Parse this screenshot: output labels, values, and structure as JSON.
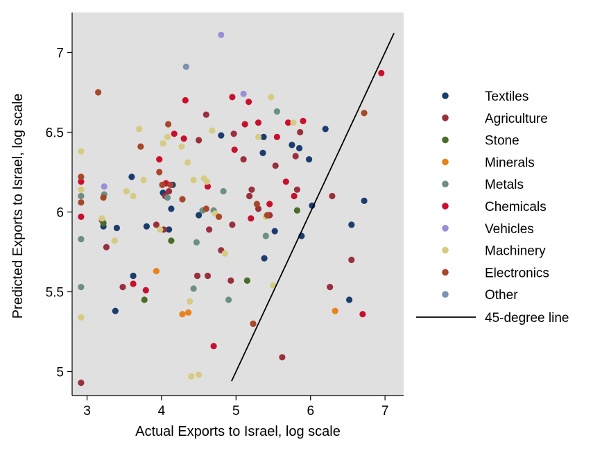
{
  "chart_data": {
    "type": "scatter",
    "title": "",
    "xlabel": "Actual Exports to Israel, log scale",
    "ylabel": "Predicted Exports to Israel, log scale",
    "xlim": [
      2.8,
      7.25
    ],
    "ylim": [
      4.85,
      7.25
    ],
    "xticks": [
      "3",
      "4",
      "5",
      "6",
      "7"
    ],
    "yticks": [
      "5",
      "5.5",
      "6",
      "6.5",
      "7"
    ],
    "grid": false,
    "plot_background": "#e0e0e0",
    "legend_position": "right",
    "series": [
      {
        "name": "Textiles",
        "color": "#1b3d6e",
        "points": [
          [
            3.22,
            5.91
          ],
          [
            3.38,
            5.38
          ],
          [
            3.4,
            5.9
          ],
          [
            3.6,
            6.22
          ],
          [
            3.62,
            5.6
          ],
          [
            3.8,
            5.91
          ],
          [
            4.02,
            6.12
          ],
          [
            4.1,
            5.89
          ],
          [
            4.13,
            6.02
          ],
          [
            4.15,
            6.17
          ],
          [
            4.5,
            5.98
          ],
          [
            4.8,
            6.48
          ],
          [
            5.37,
            6.47
          ],
          [
            5.36,
            6.37
          ],
          [
            5.38,
            5.71
          ],
          [
            5.52,
            5.88
          ],
          [
            5.75,
            6.42
          ],
          [
            5.85,
            6.4
          ],
          [
            5.88,
            5.85
          ],
          [
            5.98,
            6.33
          ],
          [
            6.02,
            6.04
          ],
          [
            6.2,
            6.52
          ],
          [
            6.52,
            5.45
          ],
          [
            6.55,
            5.92
          ],
          [
            6.72,
            6.07
          ]
        ]
      },
      {
        "name": "Agriculture",
        "color": "#9a2f3d",
        "points": [
          [
            2.92,
            4.93
          ],
          [
            3.2,
            5.95
          ],
          [
            3.26,
            5.78
          ],
          [
            3.48,
            5.53
          ],
          [
            3.93,
            5.92
          ],
          [
            4.03,
            5.89
          ],
          [
            4.05,
            6.1
          ],
          [
            4.1,
            6.13
          ],
          [
            4.48,
            5.6
          ],
          [
            4.5,
            6.45
          ],
          [
            4.6,
            6.61
          ],
          [
            4.62,
            5.6
          ],
          [
            4.64,
            5.89
          ],
          [
            4.8,
            5.76
          ],
          [
            4.93,
            5.57
          ],
          [
            4.95,
            5.92
          ],
          [
            4.97,
            6.49
          ],
          [
            5.1,
            6.33
          ],
          [
            5.18,
            6.1
          ],
          [
            5.21,
            6.14
          ],
          [
            5.3,
            6.02
          ],
          [
            5.45,
            5.98
          ],
          [
            5.53,
            6.29
          ],
          [
            5.62,
            5.09
          ],
          [
            5.8,
            6.35
          ],
          [
            5.82,
            6.14
          ],
          [
            5.86,
            6.5
          ],
          [
            6.26,
            5.53
          ],
          [
            6.29,
            6.1
          ],
          [
            6.55,
            5.7
          ]
        ]
      },
      {
        "name": "Stone",
        "color": "#4a6b2a",
        "points": [
          [
            3.22,
            5.93
          ],
          [
            3.77,
            5.45
          ],
          [
            4.13,
            5.82
          ],
          [
            5.15,
            5.57
          ],
          [
            5.82,
            6.01
          ]
        ]
      },
      {
        "name": "Minerals",
        "color": "#e8821b",
        "points": [
          [
            3.93,
            5.63
          ],
          [
            4.28,
            5.36
          ],
          [
            4.36,
            5.37
          ],
          [
            6.33,
            5.38
          ]
        ]
      },
      {
        "name": "Metals",
        "color": "#6b8f83",
        "points": [
          [
            2.92,
            6.1
          ],
          [
            2.92,
            5.83
          ],
          [
            2.92,
            5.53
          ],
          [
            3.23,
            6.11
          ],
          [
            4.08,
            6.09
          ],
          [
            4.43,
            5.52
          ],
          [
            4.47,
            5.81
          ],
          [
            4.55,
            6.01
          ],
          [
            4.7,
            6.01
          ],
          [
            4.83,
            6.13
          ],
          [
            4.9,
            5.45
          ],
          [
            5.4,
            5.85
          ],
          [
            5.55,
            6.63
          ]
        ]
      },
      {
        "name": "Chemicals",
        "color": "#c8102e",
        "points": [
          [
            2.92,
            6.19
          ],
          [
            2.92,
            5.97
          ],
          [
            3.62,
            5.55
          ],
          [
            3.79,
            5.51
          ],
          [
            3.97,
            6.33
          ],
          [
            4.06,
            6.18
          ],
          [
            4.17,
            6.49
          ],
          [
            4.3,
            6.46
          ],
          [
            4.32,
            6.7
          ],
          [
            4.62,
            6.16
          ],
          [
            4.7,
            5.16
          ],
          [
            4.95,
            6.72
          ],
          [
            4.98,
            6.39
          ],
          [
            5.12,
            6.55
          ],
          [
            5.17,
            6.69
          ],
          [
            5.2,
            5.96
          ],
          [
            5.3,
            6.56
          ],
          [
            5.45,
            6.05
          ],
          [
            5.55,
            6.47
          ],
          [
            5.67,
            6.19
          ],
          [
            5.7,
            6.56
          ],
          [
            5.78,
            6.1
          ],
          [
            5.9,
            6.57
          ],
          [
            6.7,
            5.36
          ],
          [
            6.95,
            6.87
          ]
        ]
      },
      {
        "name": "Vehicles",
        "color": "#9b8fd8",
        "points": [
          [
            3.23,
            6.16
          ],
          [
            4.8,
            7.11
          ],
          [
            5.1,
            6.74
          ]
        ]
      },
      {
        "name": "Machinery",
        "color": "#d6cb82",
        "points": [
          [
            2.92,
            6.38
          ],
          [
            2.92,
            6.14
          ],
          [
            2.92,
            5.34
          ],
          [
            3.2,
            5.96
          ],
          [
            3.37,
            5.82
          ],
          [
            3.53,
            6.13
          ],
          [
            3.62,
            6.1
          ],
          [
            3.7,
            6.52
          ],
          [
            3.72,
            6.41
          ],
          [
            3.76,
            6.2
          ],
          [
            3.98,
            5.89
          ],
          [
            4.02,
            6.43
          ],
          [
            4.08,
            6.47
          ],
          [
            4.27,
            6.41
          ],
          [
            4.35,
            6.31
          ],
          [
            4.38,
            5.44
          ],
          [
            4.4,
            4.97
          ],
          [
            4.43,
            6.2
          ],
          [
            4.5,
            4.98
          ],
          [
            4.57,
            6.21
          ],
          [
            4.61,
            6.19
          ],
          [
            4.68,
            6.51
          ],
          [
            4.72,
            5.99
          ],
          [
            4.85,
            5.74
          ],
          [
            5.3,
            6.47
          ],
          [
            5.4,
            5.97
          ],
          [
            5.47,
            6.72
          ],
          [
            5.5,
            5.54
          ],
          [
            5.77,
            6.56
          ]
        ]
      },
      {
        "name": "Electronics",
        "color": "#a8472a",
        "points": [
          [
            2.92,
            6.22
          ],
          [
            2.92,
            6.06
          ],
          [
            3.15,
            6.75
          ],
          [
            3.22,
            6.09
          ],
          [
            3.72,
            6.41
          ],
          [
            3.97,
            6.25
          ],
          [
            4.01,
            6.17
          ],
          [
            4.09,
            6.55
          ],
          [
            4.12,
            6.17
          ],
          [
            4.28,
            6.08
          ],
          [
            4.6,
            6.02
          ],
          [
            4.77,
            5.97
          ],
          [
            5.23,
            5.3
          ],
          [
            5.28,
            6.05
          ],
          [
            5.42,
            5.98
          ],
          [
            6.72,
            6.62
          ]
        ]
      },
      {
        "name": "Other",
        "color": "#7b93b0",
        "points": [
          [
            4.33,
            6.91
          ]
        ]
      }
    ],
    "reference_line": {
      "name": "45-degree line",
      "color": "#000000",
      "x": [
        4.94,
        7.12
      ],
      "y": [
        4.94,
        7.12
      ]
    }
  }
}
